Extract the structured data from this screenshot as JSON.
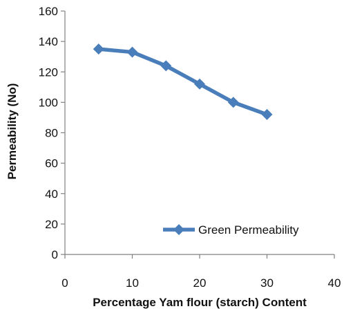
{
  "chart_data": {
    "type": "line",
    "xlabel": "Percentage Yam flour (starch) Content",
    "ylabel": "Permeability (No)",
    "xlim": [
      0,
      40
    ],
    "ylim": [
      0,
      160
    ],
    "x_ticks": [
      0,
      10,
      20,
      30,
      40
    ],
    "y_ticks": [
      0,
      20,
      40,
      60,
      80,
      100,
      120,
      140,
      160
    ],
    "grid": false,
    "legend_position": "bottom-right",
    "series": [
      {
        "name": "Green Permeability",
        "color": "#4a7ebb",
        "marker": "diamond",
        "x": [
          5,
          10,
          15,
          20,
          25,
          30
        ],
        "y": [
          135,
          133,
          124,
          112,
          100,
          92
        ]
      }
    ]
  }
}
